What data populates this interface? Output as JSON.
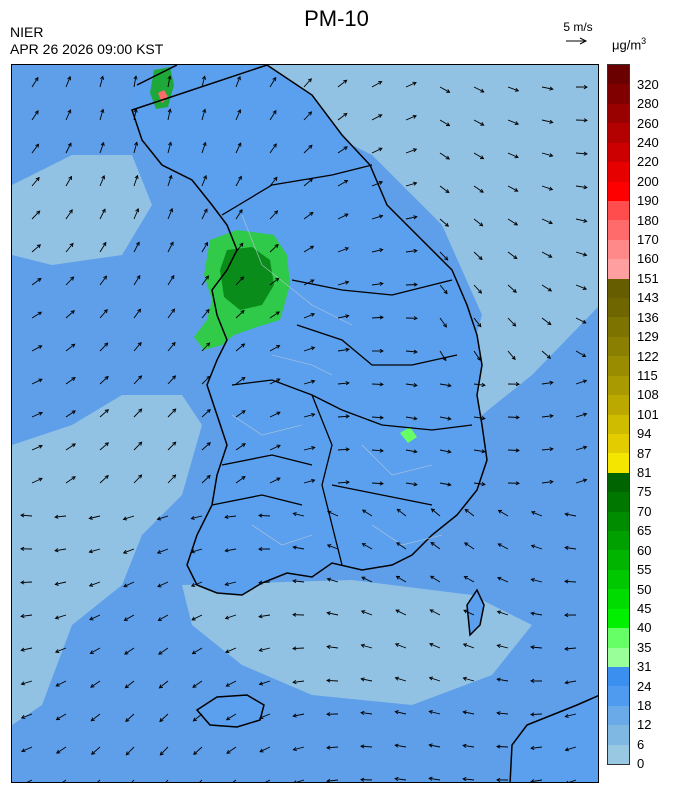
{
  "header": {
    "title": "PM-10",
    "source": "NIER",
    "timestamp": "APR 26 2026 09:00 KST",
    "wind_reference": "5 m/s",
    "unit_base": "μg/m",
    "unit_exp": "3"
  },
  "colors": {
    "sea_background": "#5f9fea",
    "light_band": "#92c2e3",
    "mid_blue": "#5aa0ee",
    "coast_line": "#000000",
    "province_line": "#b8c6d6"
  },
  "legend": [
    {
      "label": "320",
      "color": "#6b0000"
    },
    {
      "label": "280",
      "color": "#800000"
    },
    {
      "label": "260",
      "color": "#990000"
    },
    {
      "label": "240",
      "color": "#b30000"
    },
    {
      "label": "220",
      "color": "#cc0000"
    },
    {
      "label": "200",
      "color": "#e60000"
    },
    {
      "label": "190",
      "color": "#ff0000"
    },
    {
      "label": "180",
      "color": "#ff4d4d"
    },
    {
      "label": "170",
      "color": "#ff6b6b"
    },
    {
      "label": "160",
      "color": "#ff8888"
    },
    {
      "label": "151",
      "color": "#ff9f9f"
    },
    {
      "label": "143",
      "color": "#665c00"
    },
    {
      "label": "136",
      "color": "#706600"
    },
    {
      "label": "129",
      "color": "#7d7300"
    },
    {
      "label": "122",
      "color": "#8a7f00"
    },
    {
      "label": "115",
      "color": "#998c00"
    },
    {
      "label": "108",
      "color": "#a89a00"
    },
    {
      "label": "101",
      "color": "#bba900"
    },
    {
      "label": "94",
      "color": "#cfbb00"
    },
    {
      "label": "87",
      "color": "#e3cd00"
    },
    {
      "label": "81",
      "color": "#f5e600"
    },
    {
      "label": "75",
      "color": "#006400"
    },
    {
      "label": "70",
      "color": "#007800"
    },
    {
      "label": "65",
      "color": "#008c00"
    },
    {
      "label": "60",
      "color": "#00a000"
    },
    {
      "label": "55",
      "color": "#00b400"
    },
    {
      "label": "50",
      "color": "#00c800"
    },
    {
      "label": "45",
      "color": "#00dc00"
    },
    {
      "label": "40",
      "color": "#00f000"
    },
    {
      "label": "35",
      "color": "#66ff66"
    },
    {
      "label": "31",
      "color": "#99ff99"
    },
    {
      "label": "24",
      "color": "#3b8fee"
    },
    {
      "label": "18",
      "color": "#4f9bf0"
    },
    {
      "label": "12",
      "color": "#6aaae8"
    },
    {
      "label": "6",
      "color": "#80b8e4"
    },
    {
      "label": "0",
      "color": "#98c8e2"
    }
  ]
}
